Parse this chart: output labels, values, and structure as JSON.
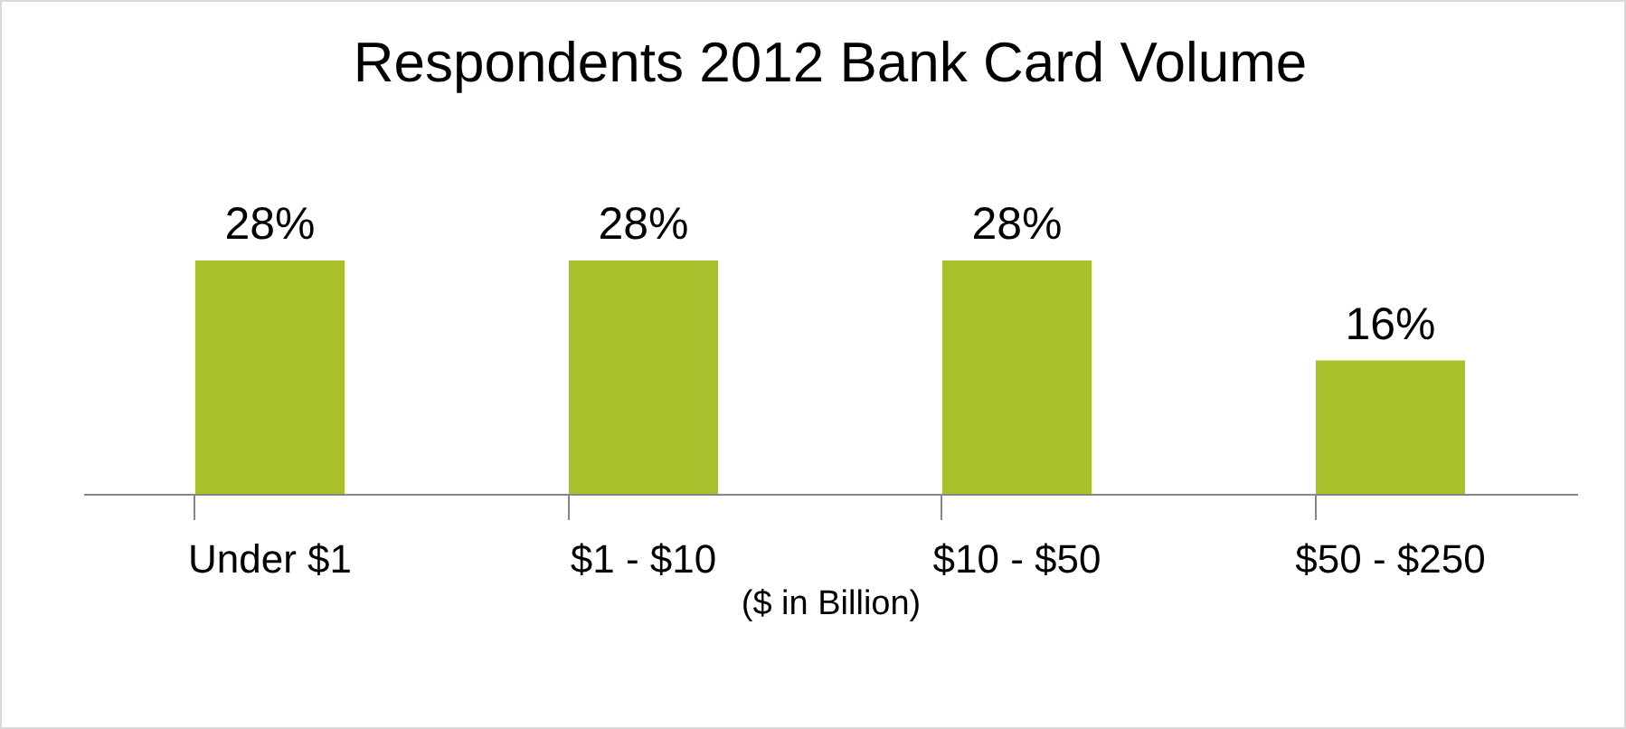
{
  "chart_data": {
    "type": "bar",
    "title": "Respondents 2012 Bank Card Volume",
    "xlabel": "($ in Billion)",
    "categories": [
      "Under $1",
      "$1 - $10",
      "$10 - $50",
      "$50 - $250"
    ],
    "values": [
      28,
      28,
      28,
      16
    ],
    "value_labels": [
      "28%",
      "28%",
      "28%",
      "16%"
    ],
    "color": "#a9bf2b",
    "tick_labels": "x"
  }
}
